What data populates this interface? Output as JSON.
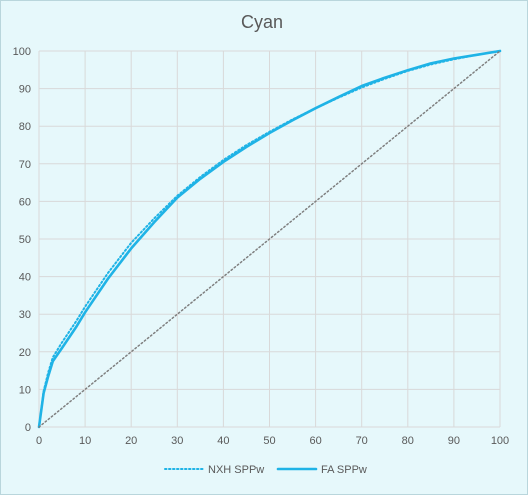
{
  "chart_data": {
    "type": "line",
    "title": "Cyan",
    "xlabel": "",
    "ylabel": "",
    "xlim": [
      0,
      100
    ],
    "ylim": [
      0,
      100
    ],
    "x_ticks": [
      "0",
      "10",
      "20",
      "30",
      "40",
      "50",
      "60",
      "70",
      "80",
      "90",
      "100"
    ],
    "y_ticks": [
      "0",
      "10",
      "20",
      "30",
      "40",
      "50",
      "60",
      "70",
      "80",
      "90",
      "100"
    ],
    "grid": true,
    "legend_position": "bottom",
    "series": [
      {
        "name": "NXH SPPw",
        "style": "dotted",
        "color": "#1fb3e6",
        "x": [
          0,
          1,
          2,
          3,
          5,
          8,
          10,
          15,
          20,
          25,
          30,
          35,
          40,
          45,
          50,
          55,
          60,
          65,
          70,
          75,
          80,
          85,
          90,
          95,
          100
        ],
        "y": [
          0,
          9.5,
          14.5,
          18.5,
          22.5,
          28,
          32,
          41,
          49,
          55.5,
          61.5,
          66.5,
          71,
          75,
          78.5,
          81.8,
          84.8,
          87.6,
          90.3,
          92.6,
          94.7,
          96.4,
          97.8,
          99,
          100
        ]
      },
      {
        "name": "FA SPPw",
        "style": "solid",
        "color": "#1fb3e6",
        "x": [
          0,
          1,
          2,
          3,
          5,
          8,
          10,
          15,
          20,
          25,
          30,
          35,
          40,
          45,
          50,
          55,
          60,
          65,
          70,
          75,
          80,
          85,
          90,
          95,
          100
        ],
        "y": [
          0,
          9,
          13.5,
          17.5,
          21,
          26.5,
          30.5,
          39.5,
          47.5,
          54.5,
          61,
          66,
          70.5,
          74.5,
          78.2,
          81.6,
          84.8,
          87.8,
          90.7,
          92.9,
          94.9,
          96.7,
          98,
          99,
          100
        ]
      },
      {
        "name": "",
        "style": "dotted-reference",
        "color": "#7f7f7f",
        "x": [
          0,
          100
        ],
        "y": [
          0,
          100
        ]
      }
    ]
  }
}
